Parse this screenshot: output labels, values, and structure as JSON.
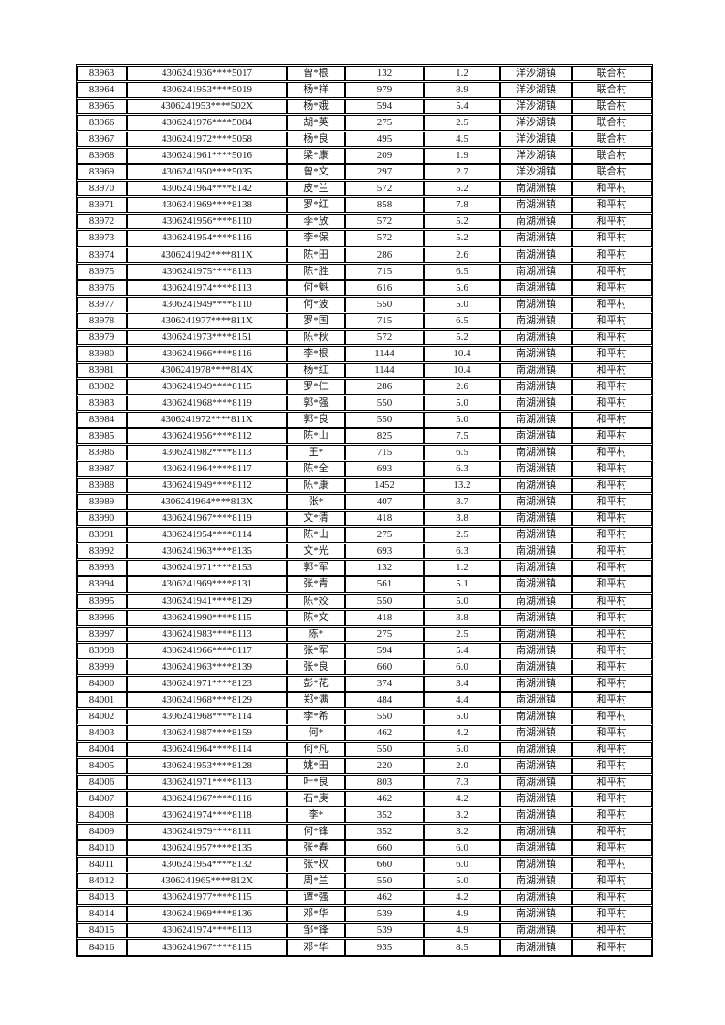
{
  "page": {
    "background_color": "#ffffff",
    "text_color": "#1a1a1a",
    "border_color": "#000000"
  },
  "table": {
    "column_names": [
      "sequence-number",
      "masked-id-number",
      "masked-name",
      "amount",
      "value",
      "town",
      "village"
    ],
    "rows": [
      [
        "83963",
        "4306241936****5017",
        "曾*根",
        "132",
        "1.2",
        "洋沙湖镇",
        "联合村"
      ],
      [
        "83964",
        "4306241953****5019",
        "杨*祥",
        "979",
        "8.9",
        "洋沙湖镇",
        "联合村"
      ],
      [
        "83965",
        "4306241953****502X",
        "杨*娥",
        "594",
        "5.4",
        "洋沙湖镇",
        "联合村"
      ],
      [
        "83966",
        "4306241976****5084",
        "胡*英",
        "275",
        "2.5",
        "洋沙湖镇",
        "联合村"
      ],
      [
        "83967",
        "4306241972****5058",
        "杨*良",
        "495",
        "4.5",
        "洋沙湖镇",
        "联合村"
      ],
      [
        "83968",
        "4306241961****5016",
        "梁*康",
        "209",
        "1.9",
        "洋沙湖镇",
        "联合村"
      ],
      [
        "83969",
        "4306241950****5035",
        "曾*文",
        "297",
        "2.7",
        "洋沙湖镇",
        "联合村"
      ],
      [
        "83970",
        "4306241964****8142",
        "皮*兰",
        "572",
        "5.2",
        "南湖洲镇",
        "和平村"
      ],
      [
        "83971",
        "4306241969****8138",
        "罗*红",
        "858",
        "7.8",
        "南湖洲镇",
        "和平村"
      ],
      [
        "83972",
        "4306241956****8110",
        "李*放",
        "572",
        "5.2",
        "南湖洲镇",
        "和平村"
      ],
      [
        "83973",
        "4306241954****8116",
        "李*保",
        "572",
        "5.2",
        "南湖洲镇",
        "和平村"
      ],
      [
        "83974",
        "4306241942****811X",
        "陈*田",
        "286",
        "2.6",
        "南湖洲镇",
        "和平村"
      ],
      [
        "83975",
        "4306241975****8113",
        "陈*胜",
        "715",
        "6.5",
        "南湖洲镇",
        "和平村"
      ],
      [
        "83976",
        "4306241974****8113",
        "何*魁",
        "616",
        "5.6",
        "南湖洲镇",
        "和平村"
      ],
      [
        "83977",
        "4306241949****8110",
        "何*波",
        "550",
        "5.0",
        "南湖洲镇",
        "和平村"
      ],
      [
        "83978",
        "4306241977****811X",
        "罗*国",
        "715",
        "6.5",
        "南湖洲镇",
        "和平村"
      ],
      [
        "83979",
        "4306241973****8151",
        "陈*秋",
        "572",
        "5.2",
        "南湖洲镇",
        "和平村"
      ],
      [
        "83980",
        "4306241966****8116",
        "李*根",
        "1144",
        "10.4",
        "南湖洲镇",
        "和平村"
      ],
      [
        "83981",
        "4306241978****814X",
        "杨*红",
        "1144",
        "10.4",
        "南湖洲镇",
        "和平村"
      ],
      [
        "83982",
        "4306241949****8115",
        "罗*仁",
        "286",
        "2.6",
        "南湖洲镇",
        "和平村"
      ],
      [
        "83983",
        "4306241968****8119",
        "郭*强",
        "550",
        "5.0",
        "南湖洲镇",
        "和平村"
      ],
      [
        "83984",
        "4306241972****811X",
        "郭*良",
        "550",
        "5.0",
        "南湖洲镇",
        "和平村"
      ],
      [
        "83985",
        "4306241956****8112",
        "陈*山",
        "825",
        "7.5",
        "南湖洲镇",
        "和平村"
      ],
      [
        "83986",
        "4306241982****8113",
        "王*",
        "715",
        "6.5",
        "南湖洲镇",
        "和平村"
      ],
      [
        "83987",
        "4306241964****8117",
        "陈*全",
        "693",
        "6.3",
        "南湖洲镇",
        "和平村"
      ],
      [
        "83988",
        "4306241949****8112",
        "陈*康",
        "1452",
        "13.2",
        "南湖洲镇",
        "和平村"
      ],
      [
        "83989",
        "4306241964****813X",
        "张*",
        "407",
        "3.7",
        "南湖洲镇",
        "和平村"
      ],
      [
        "83990",
        "4306241967****8119",
        "文*清",
        "418",
        "3.8",
        "南湖洲镇",
        "和平村"
      ],
      [
        "83991",
        "4306241954****8114",
        "陈*山",
        "275",
        "2.5",
        "南湖洲镇",
        "和平村"
      ],
      [
        "83992",
        "4306241963****8135",
        "文*光",
        "693",
        "6.3",
        "南湖洲镇",
        "和平村"
      ],
      [
        "83993",
        "4306241971****8153",
        "郭*军",
        "132",
        "1.2",
        "南湖洲镇",
        "和平村"
      ],
      [
        "83994",
        "4306241969****8131",
        "张*青",
        "561",
        "5.1",
        "南湖洲镇",
        "和平村"
      ],
      [
        "83995",
        "4306241941****8129",
        "陈*姣",
        "550",
        "5.0",
        "南湖洲镇",
        "和平村"
      ],
      [
        "83996",
        "4306241990****8115",
        "陈*文",
        "418",
        "3.8",
        "南湖洲镇",
        "和平村"
      ],
      [
        "83997",
        "4306241983****8113",
        "陈*",
        "275",
        "2.5",
        "南湖洲镇",
        "和平村"
      ],
      [
        "83998",
        "4306241966****8117",
        "张*军",
        "594",
        "5.4",
        "南湖洲镇",
        "和平村"
      ],
      [
        "83999",
        "4306241963****8139",
        "张*良",
        "660",
        "6.0",
        "南湖洲镇",
        "和平村"
      ],
      [
        "84000",
        "4306241971****8123",
        "彭*花",
        "374",
        "3.4",
        "南湖洲镇",
        "和平村"
      ],
      [
        "84001",
        "4306241968****8129",
        "郑*满",
        "484",
        "4.4",
        "南湖洲镇",
        "和平村"
      ],
      [
        "84002",
        "4306241968****8114",
        "李*希",
        "550",
        "5.0",
        "南湖洲镇",
        "和平村"
      ],
      [
        "84003",
        "4306241987****8159",
        "何*",
        "462",
        "4.2",
        "南湖洲镇",
        "和平村"
      ],
      [
        "84004",
        "4306241964****8114",
        "何*凡",
        "550",
        "5.0",
        "南湖洲镇",
        "和平村"
      ],
      [
        "84005",
        "4306241953****8128",
        "姚*田",
        "220",
        "2.0",
        "南湖洲镇",
        "和平村"
      ],
      [
        "84006",
        "4306241971****8113",
        "叶*良",
        "803",
        "7.3",
        "南湖洲镇",
        "和平村"
      ],
      [
        "84007",
        "4306241967****8116",
        "石*庚",
        "462",
        "4.2",
        "南湖洲镇",
        "和平村"
      ],
      [
        "84008",
        "4306241974****8118",
        "李*",
        "352",
        "3.2",
        "南湖洲镇",
        "和平村"
      ],
      [
        "84009",
        "4306241979****8111",
        "何*锋",
        "352",
        "3.2",
        "南湖洲镇",
        "和平村"
      ],
      [
        "84010",
        "4306241957****8135",
        "张*春",
        "660",
        "6.0",
        "南湖洲镇",
        "和平村"
      ],
      [
        "84011",
        "4306241954****8132",
        "张*权",
        "660",
        "6.0",
        "南湖洲镇",
        "和平村"
      ],
      [
        "84012",
        "4306241965****812X",
        "周*兰",
        "550",
        "5.0",
        "南湖洲镇",
        "和平村"
      ],
      [
        "84013",
        "4306241977****8115",
        "谭*强",
        "462",
        "4.2",
        "南湖洲镇",
        "和平村"
      ],
      [
        "84014",
        "4306241969****8136",
        "邓*华",
        "539",
        "4.9",
        "南湖洲镇",
        "和平村"
      ],
      [
        "84015",
        "4306241974****8113",
        "邹*锋",
        "539",
        "4.9",
        "南湖洲镇",
        "和平村"
      ],
      [
        "84016",
        "4306241967****8115",
        "邓*华",
        "935",
        "8.5",
        "南湖洲镇",
        "和平村"
      ]
    ]
  }
}
